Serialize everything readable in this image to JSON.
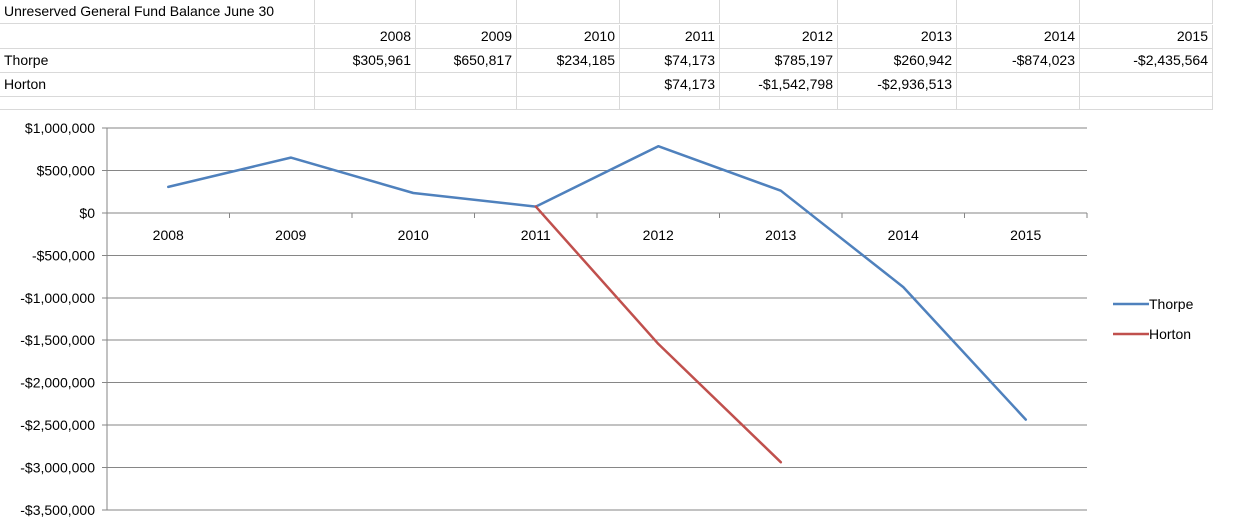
{
  "table": {
    "title": "Unreserved General Fund Balance June 30",
    "years": [
      "2008",
      "2009",
      "2010",
      "2011",
      "2012",
      "2013",
      "2014",
      "2015"
    ],
    "rows": [
      {
        "name": "Thorpe",
        "values": [
          "$305,961",
          "$650,817",
          "$234,185",
          "$74,173",
          "$785,197",
          "$260,942",
          "-$874,023",
          "-$2,435,564"
        ]
      },
      {
        "name": "Horton",
        "values": [
          "",
          "",
          "",
          "$74,173",
          "-$1,542,798",
          "-$2,936,513",
          "",
          ""
        ]
      }
    ]
  },
  "chart_data": {
    "type": "line",
    "categories": [
      "2008",
      "2009",
      "2010",
      "2011",
      "2012",
      "2013",
      "2014",
      "2015"
    ],
    "series": [
      {
        "name": "Thorpe",
        "color": "#4f81bd",
        "values": [
          305961,
          650817,
          234185,
          74173,
          785197,
          260942,
          -874023,
          -2435564
        ]
      },
      {
        "name": "Horton",
        "color": "#c0504d",
        "values": [
          null,
          null,
          null,
          74173,
          -1542798,
          -2936513,
          null,
          null
        ]
      }
    ],
    "ylim": [
      -3500000,
      1000000
    ],
    "yticks": [
      1000000,
      500000,
      0,
      -500000,
      -1000000,
      -1500000,
      -2000000,
      -2500000,
      -3000000,
      -3500000
    ],
    "ytick_labels": [
      "$1,000,000",
      "$500,000",
      "$0",
      "-$500,000",
      "-$1,000,000",
      "-$1,500,000",
      "-$2,000,000",
      "-$2,500,000",
      "-$3,000,000",
      "-$3,500,000"
    ],
    "grid": true,
    "legend": "right"
  }
}
